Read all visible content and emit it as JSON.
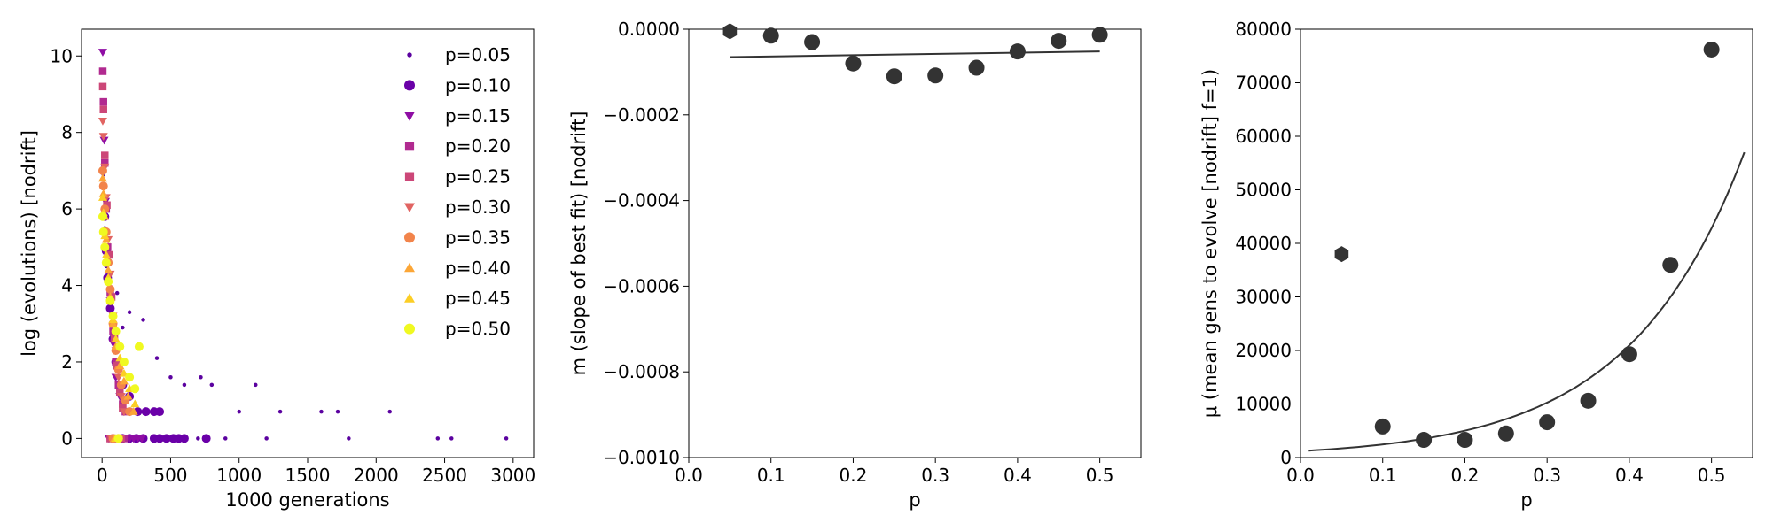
{
  "colors": {
    "dark": "#333333",
    "axis": "#000000",
    "series": [
      "#5b02a0",
      "#6a00a8",
      "#8f0da4",
      "#b12a90",
      "#cc4778",
      "#e16462",
      "#f2844b",
      "#fca636",
      "#fcce25",
      "#f0f921"
    ]
  },
  "chart_data": [
    {
      "type": "scatter",
      "xlabel": "1000 generations",
      "ylabel": "log (evolutions) [nodrift]",
      "xlim": [
        -150,
        3150
      ],
      "ylim": [
        -0.5,
        10.7
      ],
      "xticks": [
        0,
        500,
        1000,
        1500,
        2000,
        2500,
        3000
      ],
      "yticks": [
        0,
        2,
        4,
        6,
        8,
        10
      ],
      "legend_position": "top-right",
      "series": [
        {
          "name": "p=0.05",
          "marker": "dot",
          "color": "#5b02a0",
          "points": [
            [
              10,
              6.9
            ],
            [
              20,
              5.5
            ],
            [
              30,
              4.5
            ],
            [
              60,
              3.5
            ],
            [
              90,
              3.0
            ],
            [
              110,
              3.8
            ],
            [
              150,
              2.9
            ],
            [
              200,
              3.3
            ],
            [
              300,
              3.1
            ],
            [
              400,
              2.1
            ],
            [
              500,
              1.6
            ],
            [
              600,
              1.4
            ],
            [
              720,
              1.6
            ],
            [
              800,
              1.4
            ],
            [
              1000,
              0.7
            ],
            [
              1120,
              1.4
            ],
            [
              1300,
              0.7
            ],
            [
              1600,
              0.7
            ],
            [
              1720,
              0.7
            ],
            [
              2100,
              0.7
            ],
            [
              60,
              0
            ],
            [
              200,
              0
            ],
            [
              500,
              0
            ],
            [
              700,
              0
            ],
            [
              900,
              0
            ],
            [
              1200,
              0
            ],
            [
              1800,
              0
            ],
            [
              2450,
              0
            ],
            [
              2550,
              0
            ],
            [
              2950,
              0
            ]
          ]
        },
        {
          "name": "p=0.10",
          "marker": "circle",
          "color": "#6a00a8",
          "points": [
            [
              20,
              5.8
            ],
            [
              30,
              4.9
            ],
            [
              40,
              4.2
            ],
            [
              60,
              3.4
            ],
            [
              80,
              2.6
            ],
            [
              100,
              2.0
            ],
            [
              150,
              1.4
            ],
            [
              200,
              1.1
            ],
            [
              260,
              0.7
            ],
            [
              320,
              0.7
            ],
            [
              380,
              0.7
            ],
            [
              420,
              0.7
            ],
            [
              80,
              0
            ],
            [
              150,
              0
            ],
            [
              200,
              0
            ],
            [
              250,
              0
            ],
            [
              300,
              0
            ],
            [
              380,
              0
            ],
            [
              420,
              0
            ],
            [
              470,
              0
            ],
            [
              520,
              0
            ],
            [
              560,
              0
            ],
            [
              600,
              0
            ],
            [
              760,
              0
            ]
          ]
        },
        {
          "name": "p=0.15",
          "marker": "triangle-down",
          "color": "#8f0da4",
          "points": [
            [
              5,
              10.1
            ],
            [
              15,
              7.8
            ],
            [
              25,
              6.2
            ],
            [
              40,
              4.8
            ],
            [
              60,
              3.6
            ],
            [
              80,
              2.5
            ],
            [
              100,
              1.6
            ],
            [
              130,
              1.1
            ],
            [
              160,
              0.7
            ],
            [
              200,
              0.7
            ],
            [
              50,
              0
            ],
            [
              100,
              0
            ],
            [
              150,
              0
            ],
            [
              200,
              0
            ],
            [
              230,
              0
            ],
            [
              260,
              0
            ],
            [
              290,
              0
            ]
          ]
        },
        {
          "name": "p=0.20",
          "marker": "square",
          "color": "#b12a90",
          "points": [
            [
              5,
              9.6
            ],
            [
              10,
              8.8
            ],
            [
              20,
              7.2
            ],
            [
              30,
              6.0
            ],
            [
              40,
              5.0
            ],
            [
              60,
              3.8
            ],
            [
              80,
              2.8
            ],
            [
              100,
              2.0
            ],
            [
              120,
              1.4
            ],
            [
              150,
              0.9
            ],
            [
              170,
              0.7
            ],
            [
              60,
              0
            ],
            [
              110,
              0
            ],
            [
              160,
              0
            ]
          ]
        },
        {
          "name": "p=0.25",
          "marker": "square",
          "color": "#cc4778",
          "points": [
            [
              5,
              9.2
            ],
            [
              10,
              8.6
            ],
            [
              20,
              7.4
            ],
            [
              35,
              6.1
            ],
            [
              50,
              4.8
            ],
            [
              70,
              3.7
            ],
            [
              90,
              2.6
            ],
            [
              110,
              1.9
            ],
            [
              130,
              1.2
            ],
            [
              150,
              0.8
            ],
            [
              60,
              0
            ],
            [
              100,
              0
            ],
            [
              140,
              0
            ]
          ]
        },
        {
          "name": "p=0.30",
          "marker": "triangle-down",
          "color": "#e16462",
          "points": [
            [
              5,
              8.3
            ],
            [
              10,
              7.9
            ],
            [
              20,
              7.1
            ],
            [
              30,
              6.3
            ],
            [
              45,
              5.2
            ],
            [
              60,
              4.3
            ],
            [
              80,
              3.2
            ],
            [
              100,
              2.3
            ],
            [
              120,
              1.6
            ],
            [
              140,
              1.1
            ],
            [
              160,
              0.7
            ],
            [
              70,
              0
            ],
            [
              100,
              0
            ],
            [
              130,
              0
            ]
          ]
        },
        {
          "name": "p=0.35",
          "marker": "circle",
          "color": "#f2844b",
          "points": [
            [
              5,
              7.0
            ],
            [
              10,
              6.6
            ],
            [
              20,
              6.0
            ],
            [
              30,
              5.4
            ],
            [
              45,
              4.6
            ],
            [
              60,
              3.9
            ],
            [
              80,
              3.0
            ],
            [
              100,
              2.3
            ],
            [
              120,
              1.8
            ],
            [
              140,
              1.4
            ],
            [
              170,
              1.0
            ],
            [
              200,
              0.7
            ],
            [
              80,
              0
            ],
            [
              120,
              0
            ]
          ]
        },
        {
          "name": "p=0.40",
          "marker": "triangle-up",
          "color": "#fca636",
          "points": [
            [
              5,
              6.8
            ],
            [
              10,
              6.4
            ],
            [
              20,
              5.8
            ],
            [
              30,
              5.2
            ],
            [
              45,
              4.4
            ],
            [
              60,
              3.7
            ],
            [
              80,
              3.0
            ],
            [
              100,
              2.4
            ],
            [
              130,
              1.9
            ],
            [
              160,
              1.5
            ],
            [
              190,
              1.1
            ],
            [
              230,
              0.7
            ],
            [
              90,
              0
            ]
          ]
        },
        {
          "name": "p=0.45",
          "marker": "triangle-up",
          "color": "#fcce25",
          "points": [
            [
              5,
              6.3
            ],
            [
              10,
              5.9
            ],
            [
              20,
              5.3
            ],
            [
              30,
              4.8
            ],
            [
              45,
              4.2
            ],
            [
              60,
              3.6
            ],
            [
              80,
              3.1
            ],
            [
              100,
              2.6
            ],
            [
              130,
              2.1
            ],
            [
              160,
              1.7
            ],
            [
              200,
              1.3
            ],
            [
              240,
              0.9
            ],
            [
              100,
              0
            ]
          ]
        },
        {
          "name": "p=0.50",
          "marker": "circle",
          "color": "#f0f921",
          "points": [
            [
              5,
              5.8
            ],
            [
              10,
              5.4
            ],
            [
              20,
              5.0
            ],
            [
              30,
              4.6
            ],
            [
              45,
              4.1
            ],
            [
              60,
              3.6
            ],
            [
              80,
              3.2
            ],
            [
              100,
              2.8
            ],
            [
              130,
              2.4
            ],
            [
              160,
              2.0
            ],
            [
              200,
              1.6
            ],
            [
              240,
              1.3
            ],
            [
              270,
              2.4
            ],
            [
              120,
              0
            ]
          ]
        }
      ]
    },
    {
      "type": "scatter",
      "xlabel": "p",
      "ylabel": "m (slope of best fit) [nodrift]",
      "xlim": [
        0.0,
        0.55
      ],
      "ylim": [
        -0.001,
        0.0
      ],
      "xticks": [
        0.0,
        0.1,
        0.2,
        0.3,
        0.4,
        0.5
      ],
      "xtick_labels": [
        "0.0",
        "0.1",
        "0.2",
        "0.3",
        "0.4",
        "0.5"
      ],
      "yticks": [
        -0.001,
        -0.0008,
        -0.0006,
        -0.0004,
        -0.0002,
        0.0
      ],
      "ytick_labels": [
        "−0.0010",
        "−0.0008",
        "−0.0006",
        "−0.0004",
        "−0.0002",
        "0.0000"
      ],
      "x": [
        0.05,
        0.1,
        0.15,
        0.2,
        0.25,
        0.3,
        0.35,
        0.4,
        0.45,
        0.5
      ],
      "y": [
        -5e-06,
        -1.5e-05,
        -3e-05,
        -8e-05,
        -0.00011,
        -0.000108,
        -9e-05,
        -5.2e-05,
        -2.7e-05,
        -1.3e-05
      ],
      "fit_line": {
        "x": [
          0.05,
          0.5
        ],
        "y": [
          -6.5e-05,
          -5.2e-05
        ]
      }
    },
    {
      "type": "scatter",
      "xlabel": "p",
      "ylabel": "μ (mean gens to evolve [nodrift] f=1)",
      "xlim": [
        0.0,
        0.55
      ],
      "ylim": [
        0,
        80000
      ],
      "xticks": [
        0.0,
        0.1,
        0.2,
        0.3,
        0.4,
        0.5
      ],
      "xtick_labels": [
        "0.0",
        "0.1",
        "0.2",
        "0.3",
        "0.4",
        "0.5"
      ],
      "yticks": [
        0,
        10000,
        20000,
        30000,
        40000,
        50000,
        60000,
        70000,
        80000
      ],
      "ytick_labels": [
        "0",
        "10000",
        "20000",
        "30000",
        "40000",
        "50000",
        "60000",
        "70000",
        "80000"
      ],
      "x": [
        0.05,
        0.1,
        0.15,
        0.2,
        0.25,
        0.3,
        0.35,
        0.4,
        0.45,
        0.5
      ],
      "y": [
        38000,
        5800,
        3300,
        3300,
        4500,
        6600,
        10600,
        19300,
        36000,
        76200
      ],
      "fit_curve": {
        "type": "exponential",
        "a": 1200,
        "b": 7.15,
        "x_range": [
          0.01,
          0.54
        ]
      }
    }
  ]
}
